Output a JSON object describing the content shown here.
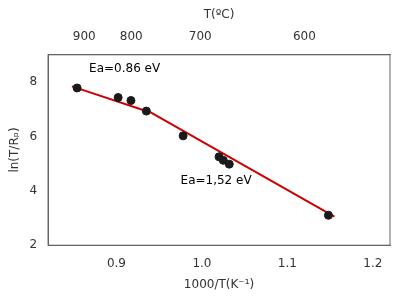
{
  "chart_data": {
    "type": "scatter",
    "xlabel": "1000/T(K⁻¹)",
    "ylabel": "ln(T/Rₚ)",
    "x2label": "T(ºC)",
    "xlim": [
      0.82,
      1.22
    ],
    "xticks": [
      0.9,
      {
        "value": 1.0,
        "label": "1.0"
      },
      1.1,
      1.2
    ],
    "ylim": [
      2.0,
      9.0
    ],
    "yticks": [
      2,
      4,
      6,
      8
    ],
    "x2lim": [
      0.82,
      1.22
    ],
    "x2ticks": [
      {
        "value": 0.8623,
        "label": "900"
      },
      {
        "value": 0.9174,
        "label": "800"
      },
      {
        "value": 0.998,
        "label": "700"
      },
      {
        "value": 1.1199,
        "label": "600"
      }
    ],
    "grid": false,
    "series": [
      {
        "type": "line",
        "color": "#cc0000",
        "x": [
          0.848,
          0.94
        ],
        "values": [
          7.84,
          6.88
        ]
      },
      {
        "type": "line",
        "color": "#cc0000",
        "x": [
          0.94,
          1.155
        ],
        "values": [
          6.88,
          3.05
        ]
      },
      {
        "type": "scatter",
        "color": "#1a1a1a",
        "marker": "circle",
        "x": [
          0.854,
          0.902,
          0.917,
          0.935,
          0.978,
          1.02,
          1.025,
          1.032,
          1.148
        ],
        "values": [
          7.78,
          7.43,
          7.32,
          6.93,
          6.02,
          5.25,
          5.12,
          4.98,
          3.1
        ]
      }
    ],
    "annotations": [
      {
        "text": "Ea=0.86 eV",
        "x": 0.868,
        "y": 8.35
      },
      {
        "text": "Ea=1,52 eV",
        "x": 0.975,
        "y": 4.25
      }
    ]
  }
}
